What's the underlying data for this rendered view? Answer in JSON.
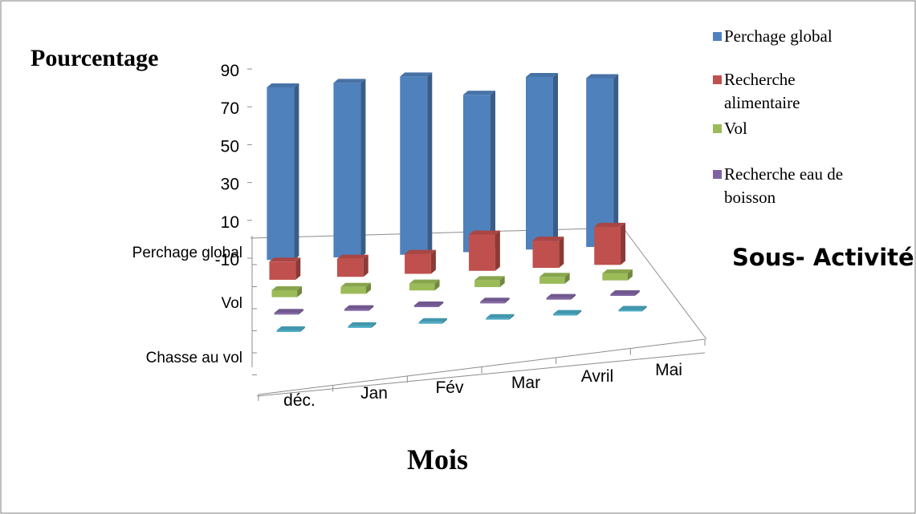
{
  "chart_data": {
    "type": "bar",
    "subtype": "3d-column",
    "title": "",
    "zlabel": "Pourcentage",
    "xlabel": "Mois",
    "ylabel": "Sous- Activité",
    "months": [
      "déc.",
      "Jan",
      "Fév",
      "Mar",
      "Avril",
      "Mai"
    ],
    "depth_labels": [
      "Perchage global",
      "Vol",
      "Chasse au vol"
    ],
    "z_ticks": [
      "-10",
      "10",
      "30",
      "50",
      "70",
      "90"
    ],
    "zlim": [
      -10,
      90
    ],
    "legend_position": "top-right",
    "series": [
      {
        "name": "Perchage global",
        "color": "#4F81BD",
        "values": [
          79,
          80,
          82,
          71,
          79,
          77
        ]
      },
      {
        "name": "Recherche alimentaire",
        "color": "#C0504D",
        "values": [
          10,
          10,
          11,
          20,
          15,
          21
        ]
      },
      {
        "name": "Vol",
        "color": "#9BBB59",
        "values": [
          4,
          4,
          4,
          4,
          4,
          4
        ]
      },
      {
        "name": "Recherche eau de boisson",
        "color": "#8064A2",
        "values": [
          1,
          1,
          1,
          1,
          1,
          1
        ]
      },
      {
        "name": "Chasse au vol",
        "color": "#4BACC6",
        "values": [
          1,
          1,
          1,
          1,
          1,
          1
        ],
        "in_legend": false
      }
    ]
  }
}
